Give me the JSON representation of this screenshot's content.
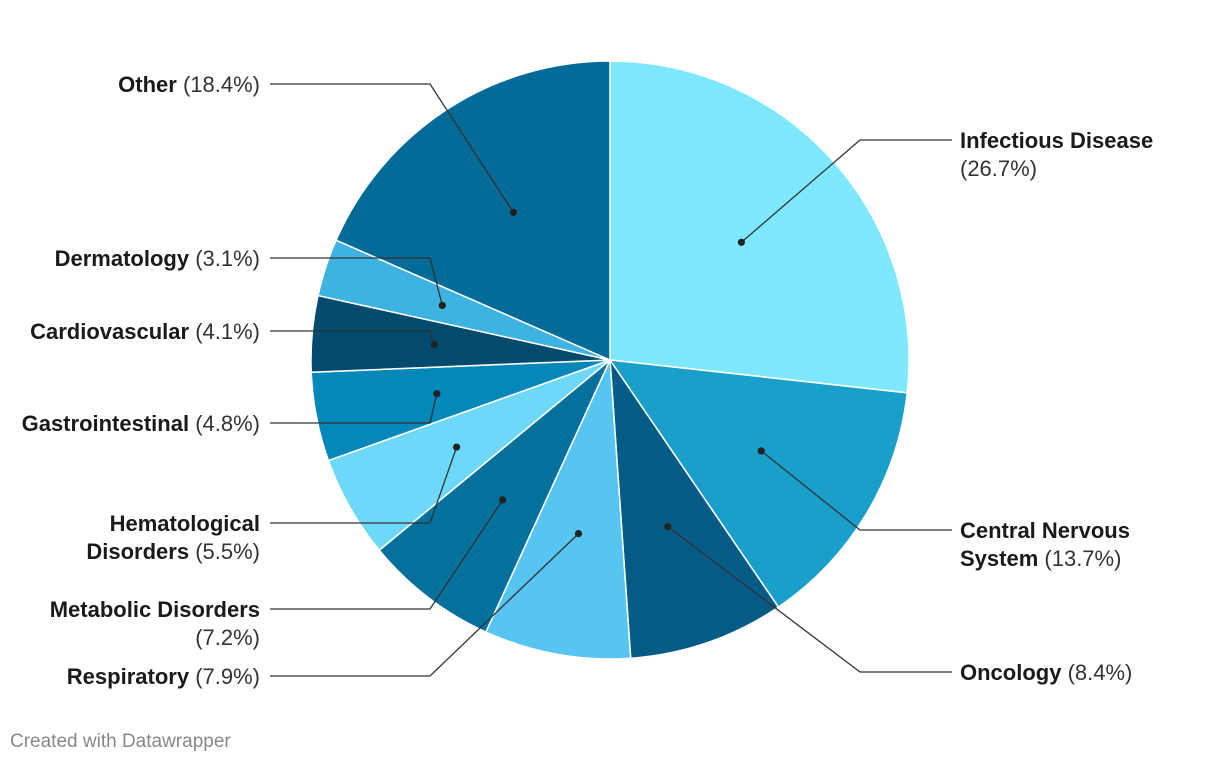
{
  "chart_data": {
    "type": "pie",
    "title": "",
    "start_angle_deg": 0,
    "direction": "clockwise",
    "slices": [
      {
        "label": "Infectious Disease",
        "label_lines": [
          "Infectious Disease"
        ],
        "value": 26.7,
        "value_text": "(26.7%)",
        "color": "#7ee9fe",
        "side": "right"
      },
      {
        "label": "Central Nervous System",
        "label_lines": [
          "Central Nervous",
          "System"
        ],
        "value": 13.7,
        "value_text": "(13.7%)",
        "color": "#1a9fcb",
        "side": "right"
      },
      {
        "label": "Oncology",
        "label_lines": [
          "Oncology"
        ],
        "value": 8.4,
        "value_text": "(8.4%)",
        "color": "#045c86",
        "side": "right"
      },
      {
        "label": "Respiratory",
        "label_lines": [
          "Respiratory"
        ],
        "value": 7.9,
        "value_text": "(7.9%)",
        "color": "#56c5f2",
        "side": "left"
      },
      {
        "label": "Metabolic Disorders",
        "label_lines": [
          "Metabolic Disorders"
        ],
        "value": 7.2,
        "value_text": "(7.2%)",
        "color": "#03719c",
        "side": "left"
      },
      {
        "label": "Hematological Disorders",
        "label_lines": [
          "Hematological",
          "Disorders"
        ],
        "value": 5.5,
        "value_text": "(5.5%)",
        "color": "#6ed8fb",
        "side": "left"
      },
      {
        "label": "Gastrointestinal",
        "label_lines": [
          "Gastrointestinal"
        ],
        "value": 4.8,
        "value_text": "(4.8%)",
        "color": "#0487b9",
        "side": "left"
      },
      {
        "label": "Cardiovascular",
        "label_lines": [
          "Cardiovascular"
        ],
        "value": 4.1,
        "value_text": "(4.1%)",
        "color": "#024a6e",
        "side": "left"
      },
      {
        "label": "Dermatology",
        "label_lines": [
          "Dermatology"
        ],
        "value": 3.1,
        "value_text": "(3.1%)",
        "color": "#3eb2e0",
        "side": "left"
      },
      {
        "label": "Other",
        "label_lines": [
          "Other"
        ],
        "value": 18.4,
        "value_text": "(18.4%)",
        "color": "#036b97",
        "side": "left"
      }
    ]
  },
  "footer": {
    "credit": "Created with Datawrapper"
  }
}
